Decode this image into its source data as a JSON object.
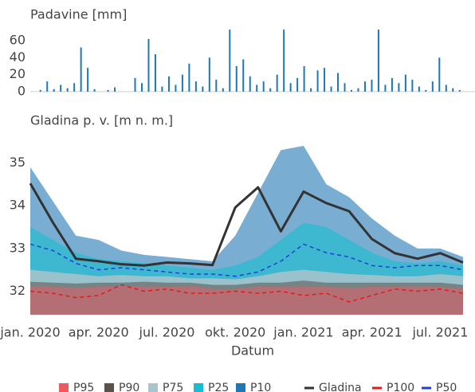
{
  "chart_data": [
    {
      "type": "bar",
      "title": "Padavine [mm]",
      "categories": [
        null,
        null,
        null,
        null,
        null,
        null,
        null,
        null,
        null,
        null,
        null,
        null,
        null,
        null,
        null,
        null,
        null,
        null,
        null,
        null,
        null,
        null,
        null,
        null,
        null,
        null,
        null,
        null,
        null,
        null,
        null,
        null,
        null,
        null,
        null,
        null,
        null,
        null,
        null,
        null,
        null,
        null,
        null,
        null,
        null,
        null,
        null,
        null,
        null,
        null,
        null,
        null,
        null,
        null,
        null,
        null,
        null,
        null,
        null,
        null,
        null,
        null,
        null,
        null
      ],
      "values": [
        0,
        2,
        12,
        3,
        8,
        4,
        10,
        52,
        28,
        3,
        0,
        2,
        5,
        0,
        0,
        16,
        10,
        62,
        44,
        6,
        18,
        8,
        20,
        33,
        12,
        6,
        40,
        14,
        4,
        73,
        30,
        38,
        18,
        8,
        12,
        4,
        20,
        73,
        10,
        16,
        30,
        4,
        25,
        28,
        6,
        22,
        10,
        2,
        4,
        12,
        14,
        73,
        8,
        16,
        10,
        20,
        14,
        6,
        2,
        12,
        40,
        8,
        4,
        2
      ],
      "color": "#1f77b4",
      "ylim": [
        0,
        75
      ],
      "yticks": [
        0,
        20,
        40,
        60
      ]
    },
    {
      "type": "area-line",
      "title": "Gladina p. v. [m n. m.]",
      "x_label": "Datum",
      "x": [
        "2020-01",
        "2020-02",
        "2020-03",
        "2020-04",
        "2020-05",
        "2020-06",
        "2020-07",
        "2020-08",
        "2020-09",
        "2020-10",
        "2020-11",
        "2020-12",
        "2021-01",
        "2021-02",
        "2021-03",
        "2021-04",
        "2021-05",
        "2021-06",
        "2021-07",
        "2021-08"
      ],
      "xlim": [
        "2020-01",
        "2021-08"
      ],
      "xticks": [
        {
          "value": "2020-01",
          "label": "jan. 2020"
        },
        {
          "value": "2020-04",
          "label": "apr. 2020"
        },
        {
          "value": "2020-07",
          "label": "jul. 2020"
        },
        {
          "value": "2020-10",
          "label": "okt. 2020"
        },
        {
          "value": "2021-01",
          "label": "jan. 2021"
        },
        {
          "value": "2021-04",
          "label": "apr. 2021"
        },
        {
          "value": "2021-07",
          "label": "jul. 2021"
        }
      ],
      "ylim": [
        31.45,
        35.55
      ],
      "yticks": [
        32,
        33,
        34,
        35
      ],
      "series": [
        {
          "name": "P95",
          "kind": "area",
          "color": "#ef5a5f",
          "opacity": 0.5,
          "values": [
            32.12,
            32.1,
            32.08,
            32.1,
            32.12,
            32.1,
            32.1,
            32.12,
            32.05,
            32.05,
            32.1,
            32.1,
            32.1,
            32.1,
            32.08,
            32.1,
            32.1,
            32.12,
            32.1,
            32.05
          ]
        },
        {
          "name": "P90",
          "kind": "area",
          "color": "#5a524c",
          "opacity": 0.55,
          "values": [
            32.22,
            32.2,
            32.18,
            32.2,
            32.2,
            32.22,
            32.2,
            32.2,
            32.15,
            32.15,
            32.2,
            32.2,
            32.25,
            32.2,
            32.2,
            32.2,
            32.2,
            32.2,
            32.2,
            32.15
          ]
        },
        {
          "name": "P75",
          "kind": "area",
          "color": "#a9c4cc",
          "opacity": 0.85,
          "values": [
            32.5,
            32.45,
            32.4,
            32.35,
            32.38,
            32.35,
            32.35,
            32.3,
            32.3,
            32.28,
            32.35,
            32.45,
            32.5,
            32.45,
            32.4,
            32.38,
            32.35,
            32.35,
            32.4,
            32.35
          ]
        },
        {
          "name": "P25",
          "kind": "area",
          "color": "#17becf",
          "opacity": 0.6,
          "values": [
            33.5,
            33.2,
            32.9,
            32.75,
            32.7,
            32.65,
            32.6,
            32.55,
            32.5,
            32.6,
            32.8,
            33.2,
            33.6,
            33.5,
            33.2,
            32.9,
            32.7,
            32.65,
            32.7,
            32.6
          ]
        },
        {
          "name": "P10",
          "kind": "area",
          "color": "#1f77b4",
          "opacity": 0.6,
          "values": [
            34.9,
            34.1,
            33.3,
            33.2,
            32.95,
            32.85,
            32.8,
            32.75,
            32.7,
            33.3,
            34.3,
            35.3,
            35.4,
            34.5,
            34.2,
            33.7,
            33.3,
            33.0,
            33.0,
            32.8
          ]
        },
        {
          "name": "Gladina",
          "kind": "line",
          "color": "#333333",
          "dash": false,
          "values": [
            34.52,
            33.6,
            32.76,
            32.7,
            32.63,
            32.6,
            32.67,
            32.65,
            32.61,
            33.96,
            34.43,
            33.4,
            34.33,
            34.06,
            33.87,
            33.22,
            32.89,
            32.76,
            32.89,
            32.67
          ]
        },
        {
          "name": "P100",
          "kind": "line",
          "color": "#e31a1c",
          "dash": true,
          "values": [
            32.0,
            31.95,
            31.85,
            31.9,
            32.15,
            32.0,
            32.05,
            31.95,
            31.95,
            32.0,
            31.95,
            32.0,
            31.9,
            31.95,
            31.75,
            31.9,
            32.05,
            32.0,
            32.05,
            31.95
          ]
        },
        {
          "name": "P50",
          "kind": "line",
          "color": "#1f3fd6",
          "dash": true,
          "values": [
            33.1,
            32.95,
            32.65,
            32.5,
            32.55,
            32.5,
            32.45,
            32.4,
            32.4,
            32.35,
            32.45,
            32.7,
            33.1,
            32.9,
            32.8,
            32.6,
            32.55,
            32.6,
            32.6,
            32.5
          ]
        }
      ]
    }
  ]
}
